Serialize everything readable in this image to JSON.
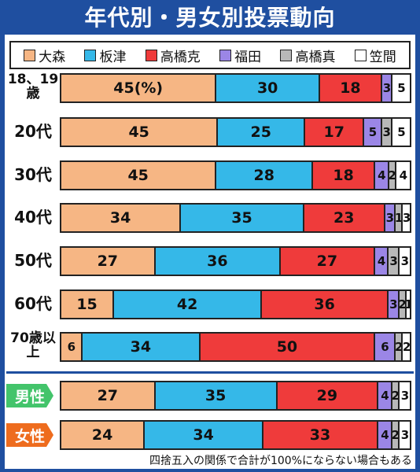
{
  "title": "年代別・男女別投票動向",
  "note": "四捨五入の関係で合計が100%にならない場合もある",
  "colors": {
    "header_bg": "#1f4fa0",
    "male_tag": "#43c46b",
    "female_tag": "#ee6c1e"
  },
  "chart_data": {
    "type": "bar",
    "orientation": "horizontal",
    "stacked": true,
    "unit_label": "(%)",
    "legend": [
      {
        "name": "大森",
        "color": "#f6b684"
      },
      {
        "name": "板津",
        "color": "#35b8e8"
      },
      {
        "name": "高橋克",
        "color": "#ef3b3b"
      },
      {
        "name": "福田",
        "color": "#9b86e6"
      },
      {
        "name": "高橋真",
        "color": "#b8b8b8"
      },
      {
        "name": "笠間",
        "color": "#ffffff"
      }
    ],
    "categories": [
      "18、19歳",
      "20代",
      "30代",
      "40代",
      "50代",
      "60代",
      "70歳以上",
      "男性",
      "女性"
    ],
    "series": [
      {
        "name": "大森",
        "values": [
          45,
          45,
          45,
          34,
          27,
          15,
          6,
          27,
          24
        ]
      },
      {
        "name": "板津",
        "values": [
          30,
          25,
          28,
          35,
          36,
          42,
          34,
          35,
          34
        ]
      },
      {
        "name": "高橋克",
        "values": [
          18,
          17,
          18,
          23,
          27,
          36,
          50,
          29,
          33
        ]
      },
      {
        "name": "福田",
        "values": [
          3,
          5,
          4,
          3,
          4,
          3,
          6,
          4,
          4
        ]
      },
      {
        "name": "高橋真",
        "values": [
          0,
          3,
          2,
          1,
          3,
          2,
          2,
          2,
          2
        ]
      },
      {
        "name": "笠間",
        "values": [
          5,
          5,
          4,
          3,
          3,
          1,
          2,
          3,
          3
        ]
      }
    ]
  }
}
